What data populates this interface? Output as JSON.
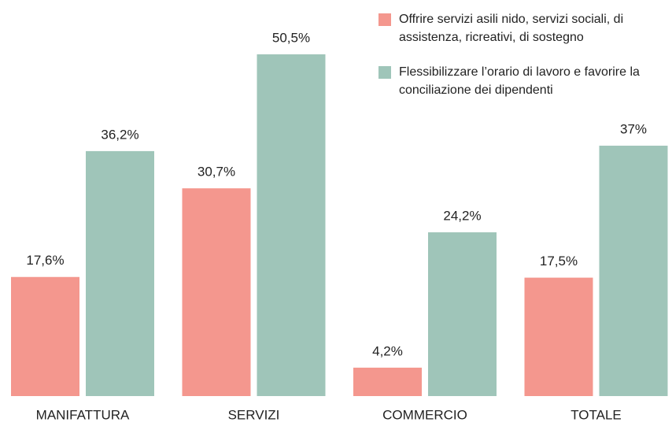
{
  "chart_data": {
    "type": "bar",
    "categories": [
      "MANIFATTURA",
      "SERVIZI",
      "COMMERCIO",
      "TOTALE"
    ],
    "series": [
      {
        "name": "Offrire servizi asili nido, servizi sociali, di assistenza, ricreativi, di sostegno",
        "color": "#f4978e",
        "values": [
          17.6,
          30.7,
          4.2,
          17.5
        ],
        "value_labels": [
          "17,6%",
          "30,7%",
          "4,2%",
          "17,5%"
        ]
      },
      {
        "name": "Flessibilizzare l’orario di lavoro e favorire la conciliazione dei dipendenti",
        "color": "#9fc5b9",
        "values": [
          36.2,
          50.5,
          24.2,
          37
        ],
        "value_labels": [
          "36,2%",
          "50,5%",
          "24,2%",
          "37%"
        ]
      }
    ]
  }
}
